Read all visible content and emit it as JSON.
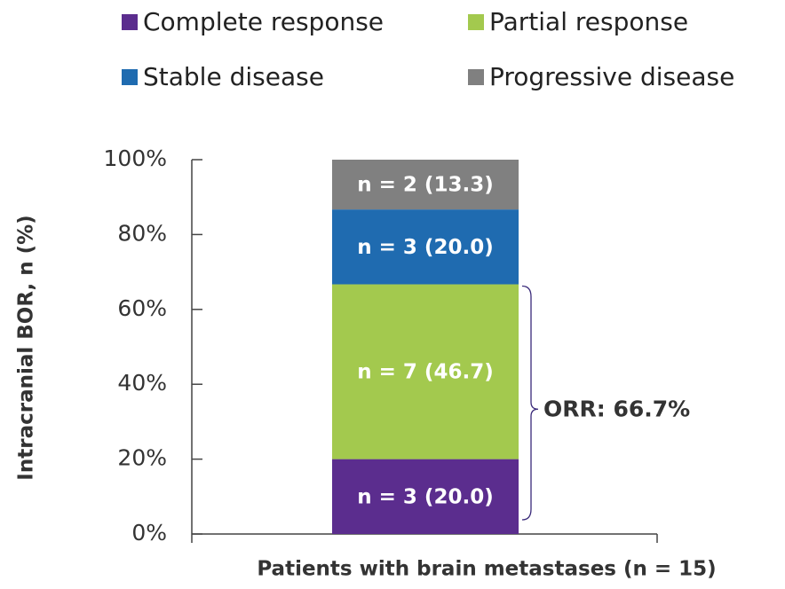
{
  "chart_data": {
    "type": "stacked_bar",
    "categories": [
      null
    ],
    "series": [
      {
        "name": "Complete response",
        "color": "#5b2d8e",
        "values": [
          20.0
        ],
        "value_labels": [
          "n = 3 (20.0)"
        ]
      },
      {
        "name": "Partial response",
        "color": "#a3c94e",
        "values": [
          46.7
        ],
        "value_labels": [
          "n = 7 (46.7)"
        ]
      },
      {
        "name": "Stable disease",
        "color": "#1f6bb0",
        "values": [
          20.0
        ],
        "value_labels": [
          "n = 3 (20.0)"
        ]
      },
      {
        "name": "Progressive disease",
        "color": "#808080",
        "values": [
          13.3
        ],
        "value_labels": [
          "n = 2 (13.3)"
        ]
      }
    ],
    "ylim": [
      0,
      100
    ],
    "yticks": [
      {
        "value": 0,
        "label": "0%"
      },
      {
        "value": 20,
        "label": "20%"
      },
      {
        "value": 40,
        "label": "40%"
      },
      {
        "value": 60,
        "label": "60%"
      },
      {
        "value": 80,
        "label": "80%"
      },
      {
        "value": 100,
        "label": "100%"
      }
    ],
    "y_label": "Intracranial BOR, n (%)",
    "x_label": "Patients with brain metastases (n = 15)",
    "annotation": "ORR: 66.7%"
  }
}
